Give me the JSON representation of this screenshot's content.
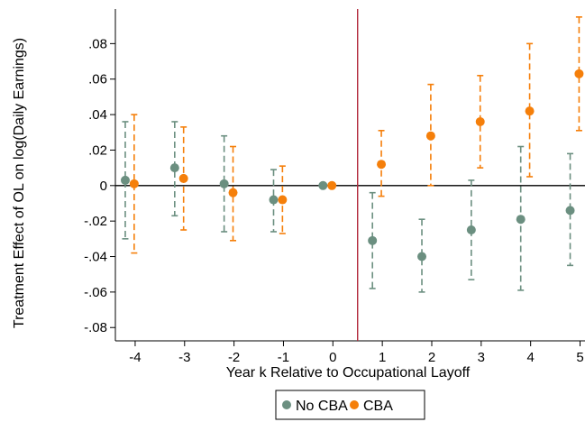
{
  "chart_data": {
    "type": "scatter",
    "xlabel": "Year k Relative to Occupational Layoff",
    "ylabel": "Treatment Effect of OL on log(Daily Earnings)",
    "x_ticks": [
      -4,
      -3,
      -2,
      -1,
      0,
      1,
      2,
      3,
      4,
      5
    ],
    "x_tick_labels": [
      "-4",
      "-3",
      "-2",
      "-1",
      "0",
      "1",
      "2",
      "3",
      "4",
      "5"
    ],
    "y_ticks": [
      -0.08,
      -0.06,
      -0.04,
      -0.02,
      0,
      0.02,
      0.04,
      0.06,
      0.08
    ],
    "y_tick_labels": [
      "-.08",
      "-.06",
      "-.04",
      "-.02",
      "0",
      ".02",
      ".04",
      ".06",
      ".08"
    ],
    "xlim": [
      -4.4,
      5.1
    ],
    "ylim": [
      -0.0875,
      0.0995
    ],
    "reference_lines": {
      "vertical_x": 0.5,
      "vertical_color": "#b1283a",
      "horizontal_y": 0
    },
    "grid": false,
    "legend_position": "bottom",
    "series": [
      {
        "name": "No CBA",
        "color": "#6b8f80",
        "points": [
          {
            "x": -4,
            "y": 0.003,
            "lo": -0.03,
            "hi": 0.036
          },
          {
            "x": -3,
            "y": 0.01,
            "lo": -0.017,
            "hi": 0.036
          },
          {
            "x": -2,
            "y": 0.001,
            "lo": -0.026,
            "hi": 0.028
          },
          {
            "x": -1,
            "y": -0.008,
            "lo": -0.026,
            "hi": 0.009
          },
          {
            "x": 0,
            "y": 0.0,
            "lo": 0.0,
            "hi": 0.0
          },
          {
            "x": 1,
            "y": -0.031,
            "lo": -0.058,
            "hi": -0.004
          },
          {
            "x": 2,
            "y": -0.04,
            "lo": -0.06,
            "hi": -0.019
          },
          {
            "x": 3,
            "y": -0.025,
            "lo": -0.053,
            "hi": 0.003
          },
          {
            "x": 4,
            "y": -0.019,
            "lo": -0.059,
            "hi": 0.022
          },
          {
            "x": 5,
            "y": -0.014,
            "lo": -0.045,
            "hi": 0.018
          }
        ]
      },
      {
        "name": "CBA",
        "color": "#f57f0a",
        "points": [
          {
            "x": -4,
            "y": 0.001,
            "lo": -0.038,
            "hi": 0.04
          },
          {
            "x": -3,
            "y": 0.004,
            "lo": -0.025,
            "hi": 0.033
          },
          {
            "x": -2,
            "y": -0.004,
            "lo": -0.031,
            "hi": 0.022
          },
          {
            "x": -1,
            "y": -0.008,
            "lo": -0.027,
            "hi": 0.011
          },
          {
            "x": 0,
            "y": 0.0,
            "lo": 0.0,
            "hi": 0.0
          },
          {
            "x": 1,
            "y": 0.012,
            "lo": -0.006,
            "hi": 0.031
          },
          {
            "x": 2,
            "y": 0.028,
            "lo": 0.0,
            "hi": 0.057
          },
          {
            "x": 3,
            "y": 0.036,
            "lo": 0.01,
            "hi": 0.062
          },
          {
            "x": 4,
            "y": 0.042,
            "lo": 0.005,
            "hi": 0.08
          },
          {
            "x": 5,
            "y": 0.063,
            "lo": 0.031,
            "hi": 0.095
          }
        ]
      }
    ]
  }
}
